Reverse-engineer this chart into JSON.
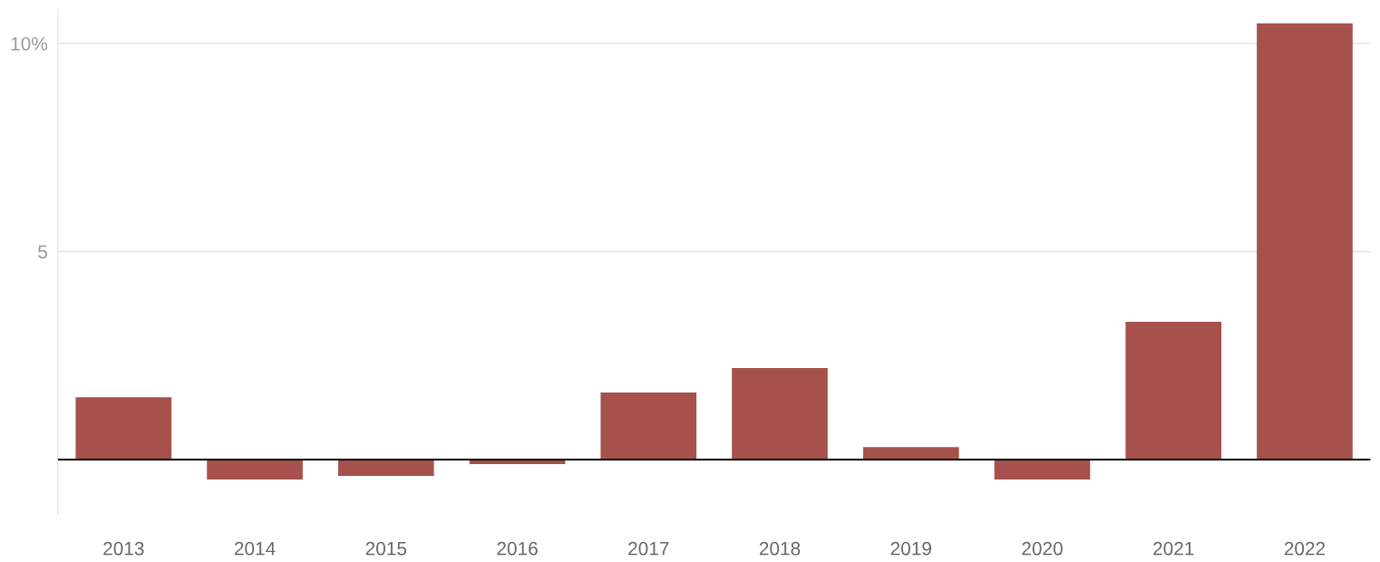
{
  "chart_data": {
    "type": "bar",
    "categories": [
      "2013",
      "2014",
      "2015",
      "2016",
      "2017",
      "2018",
      "2019",
      "2020",
      "2021",
      "2022"
    ],
    "values": [
      1.5,
      -0.48,
      -0.39,
      -0.11,
      1.61,
      2.2,
      0.3,
      -0.48,
      3.31,
      10.48
    ],
    "color": "#a6514b",
    "ylim": [
      -1.3,
      10.8
    ],
    "yticks": [
      {
        "value": 10,
        "label": "10%"
      },
      5
    ],
    "grid": "y",
    "ref_lines": [
      {
        "axis": "y",
        "value": 0,
        "color": "#000000"
      }
    ]
  }
}
